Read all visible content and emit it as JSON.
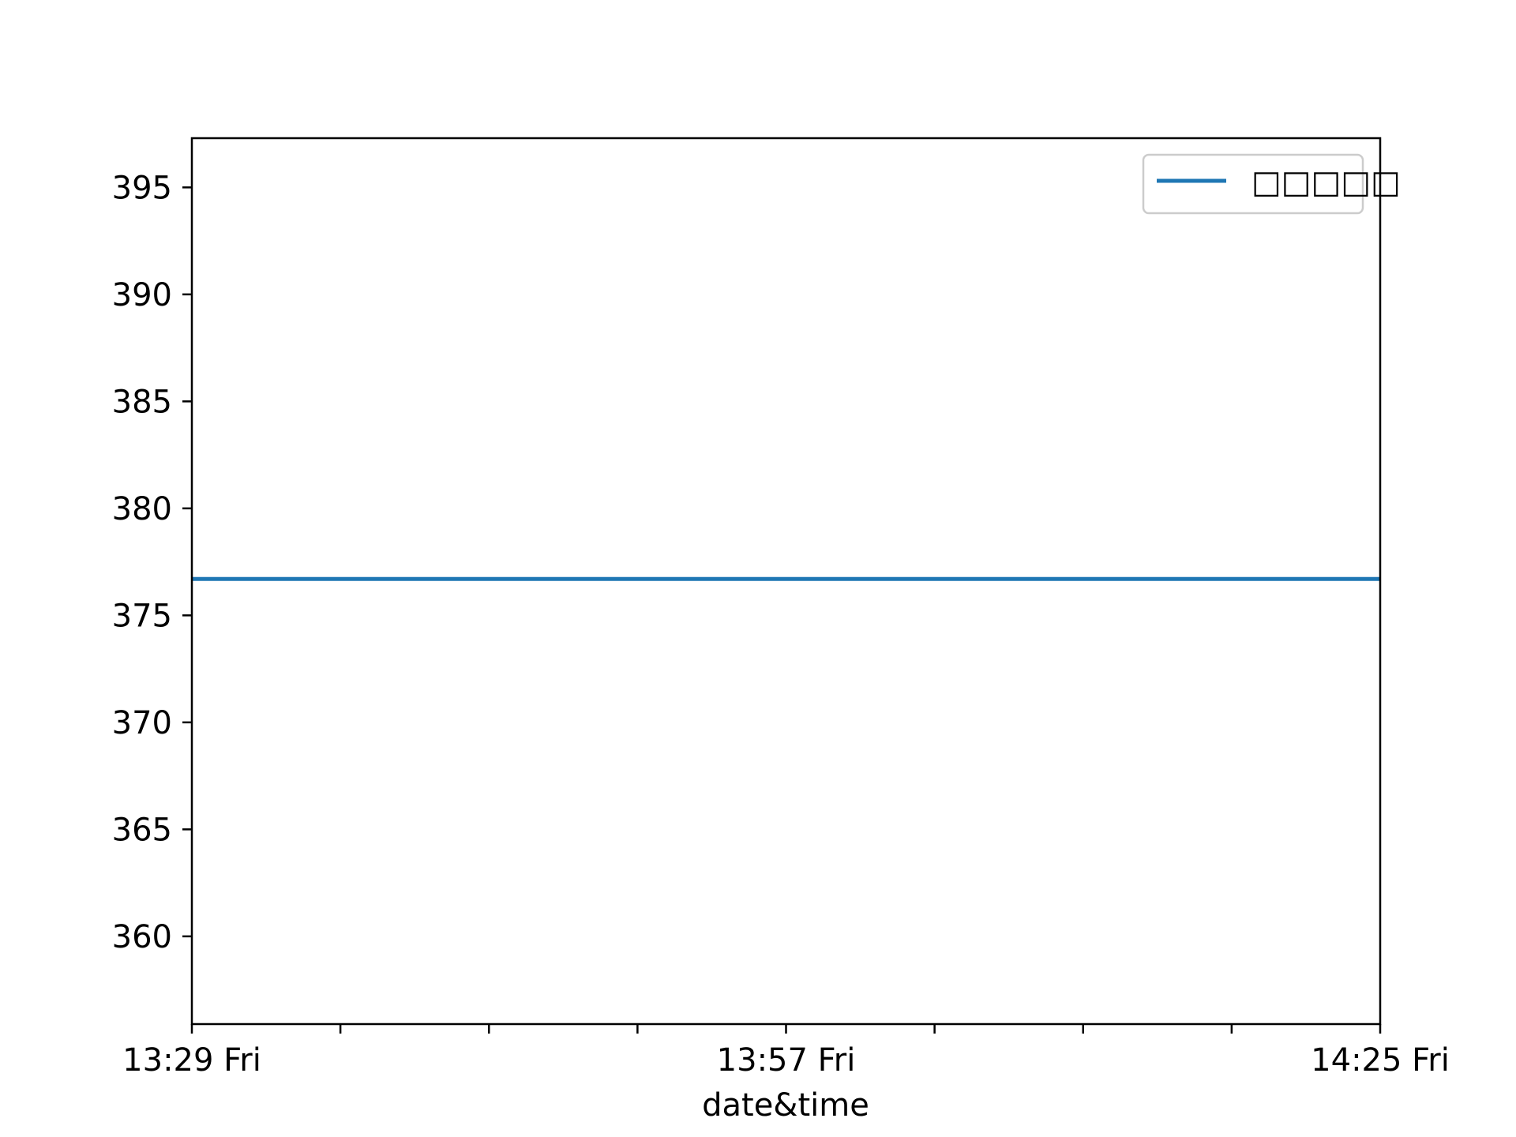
{
  "chart_data": {
    "type": "line",
    "title": "",
    "xlabel": "date&time",
    "ylabel": "",
    "x_ticks": [
      "13:29 Fri",
      "13:57 Fri",
      "14:25 Fri"
    ],
    "x_minor_ticks": 8,
    "y_ticks": [
      360,
      365,
      370,
      375,
      380,
      385,
      390,
      395
    ],
    "ylim": [
      355.9,
      397.3
    ],
    "grid": false,
    "legend_position": "top-right",
    "series": [
      {
        "name": "□□□□□",
        "color": "#1f77b4",
        "x": [
          "13:29 Fri",
          "14:25 Fri"
        ],
        "values": [
          376.7,
          376.7
        ]
      }
    ]
  }
}
